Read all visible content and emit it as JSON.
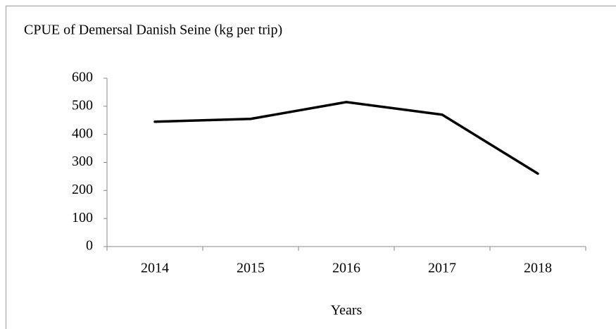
{
  "chart_data": {
    "type": "line",
    "title": "CPUE of Demersal Danish Seine (kg per trip)",
    "x_label": "Years",
    "categories": [
      "2014",
      "2015",
      "2016",
      "2017",
      "2018"
    ],
    "values": [
      445,
      455,
      515,
      470,
      260
    ],
    "color": "#000000",
    "ylim": [
      0,
      600
    ],
    "yticks": [
      0,
      100,
      200,
      300,
      400,
      500,
      600
    ],
    "grid": false
  }
}
